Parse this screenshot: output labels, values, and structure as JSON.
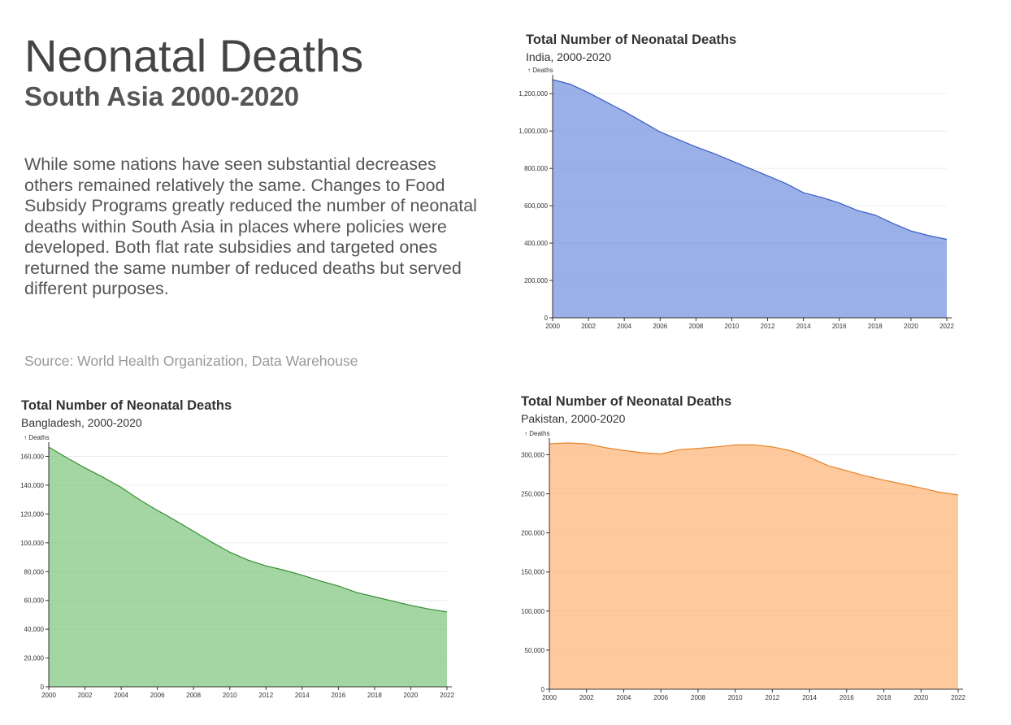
{
  "header": {
    "title": "Neonatal Deaths",
    "subtitle": "South Asia 2000-2020",
    "description": "While some nations have seen substantial decreases others remained relatively the same. Changes to Food Subsidy Programs greatly reduced the number of neonatal deaths within South Asia in places where policies were developed. Both flat rate subsidies and targeted ones returned the same number of reduced deaths but served different purposes.",
    "source": "Source: World Health Organization, Data Warehouse"
  },
  "chart_data": [
    {
      "id": "india",
      "type": "area",
      "title": "Total Number of Neonatal Deaths",
      "subtitle": "India, 2000-2020",
      "ylabel": "↑ Deaths",
      "xlabel": "",
      "color": "#6f8fdc",
      "stroke": "#3a5fcd",
      "x": [
        2000,
        2001,
        2002,
        2003,
        2004,
        2005,
        2006,
        2007,
        2008,
        2009,
        2010,
        2011,
        2012,
        2013,
        2014,
        2015,
        2016,
        2017,
        2018,
        2019,
        2020,
        2021,
        2022
      ],
      "values": [
        1275000,
        1250000,
        1205000,
        1155000,
        1105000,
        1050000,
        995000,
        955000,
        915000,
        880000,
        840000,
        800000,
        760000,
        720000,
        670000,
        645000,
        615000,
        575000,
        550000,
        505000,
        465000,
        440000,
        420000
      ],
      "xlim": [
        2000,
        2022
      ],
      "ylim": [
        0,
        1275000
      ],
      "xticks": [
        2000,
        2002,
        2004,
        2006,
        2008,
        2010,
        2012,
        2014,
        2016,
        2018,
        2020,
        2022
      ],
      "yticks": [
        0,
        200000,
        400000,
        600000,
        800000,
        1000000,
        1200000
      ],
      "ytick_labels": [
        "0",
        "200,000",
        "400,000",
        "600,000",
        "800,000",
        "1,000,000",
        "1,200,000"
      ],
      "grid": true
    },
    {
      "id": "bangladesh",
      "type": "area",
      "title": "Total Number of Neonatal Deaths",
      "subtitle": "Bangladesh, 2000-2020",
      "ylabel": "↑ Deaths",
      "xlabel": "",
      "color": "#7cc47a",
      "stroke": "#3a8f36",
      "x": [
        2000,
        2001,
        2002,
        2003,
        2004,
        2005,
        2006,
        2007,
        2008,
        2009,
        2010,
        2011,
        2012,
        2013,
        2014,
        2015,
        2016,
        2017,
        2018,
        2019,
        2020,
        2021,
        2022
      ],
      "values": [
        166500,
        159000,
        152000,
        145500,
        138500,
        130000,
        122500,
        115500,
        108000,
        100500,
        93500,
        88000,
        84000,
        81000,
        77500,
        73500,
        70000,
        65500,
        62500,
        59500,
        56500,
        54000,
        52000
      ],
      "xlim": [
        2000,
        2022
      ],
      "ylim": [
        0,
        166500
      ],
      "xticks": [
        2000,
        2002,
        2004,
        2006,
        2008,
        2010,
        2012,
        2014,
        2016,
        2018,
        2020,
        2022
      ],
      "yticks": [
        0,
        20000,
        40000,
        60000,
        80000,
        100000,
        120000,
        140000,
        160000
      ],
      "ytick_labels": [
        "0",
        "20,000",
        "40,000",
        "60,000",
        "80,000",
        "100,000",
        "120,000",
        "140,000",
        "160,000"
      ],
      "grid": true
    },
    {
      "id": "pakistan",
      "type": "area",
      "title": "Total Number of Neonatal Deaths",
      "subtitle": "Pakistan, 2000-2020",
      "ylabel": "↑ Deaths",
      "xlabel": "",
      "color": "#fdb474",
      "stroke": "#e8822b",
      "x": [
        2000,
        2001,
        2002,
        2003,
        2004,
        2005,
        2006,
        2007,
        2008,
        2009,
        2010,
        2011,
        2012,
        2013,
        2014,
        2015,
        2016,
        2017,
        2018,
        2019,
        2020,
        2021,
        2022
      ],
      "values": [
        314000,
        315000,
        314000,
        309000,
        305500,
        302500,
        301000,
        306500,
        308000,
        310000,
        312500,
        312500,
        310000,
        305000,
        296500,
        286000,
        279500,
        273000,
        267500,
        262500,
        257500,
        252000,
        248500
      ],
      "xlim": [
        2000,
        2022
      ],
      "ylim": [
        0,
        315000
      ],
      "xticks": [
        2000,
        2002,
        2004,
        2006,
        2008,
        2010,
        2012,
        2014,
        2016,
        2018,
        2020,
        2022
      ],
      "yticks": [
        0,
        50000,
        100000,
        150000,
        200000,
        250000,
        300000
      ],
      "ytick_labels": [
        "0",
        "50,000",
        "100,000",
        "150,000",
        "200,000",
        "250,000",
        "300,000"
      ],
      "grid": true
    }
  ]
}
